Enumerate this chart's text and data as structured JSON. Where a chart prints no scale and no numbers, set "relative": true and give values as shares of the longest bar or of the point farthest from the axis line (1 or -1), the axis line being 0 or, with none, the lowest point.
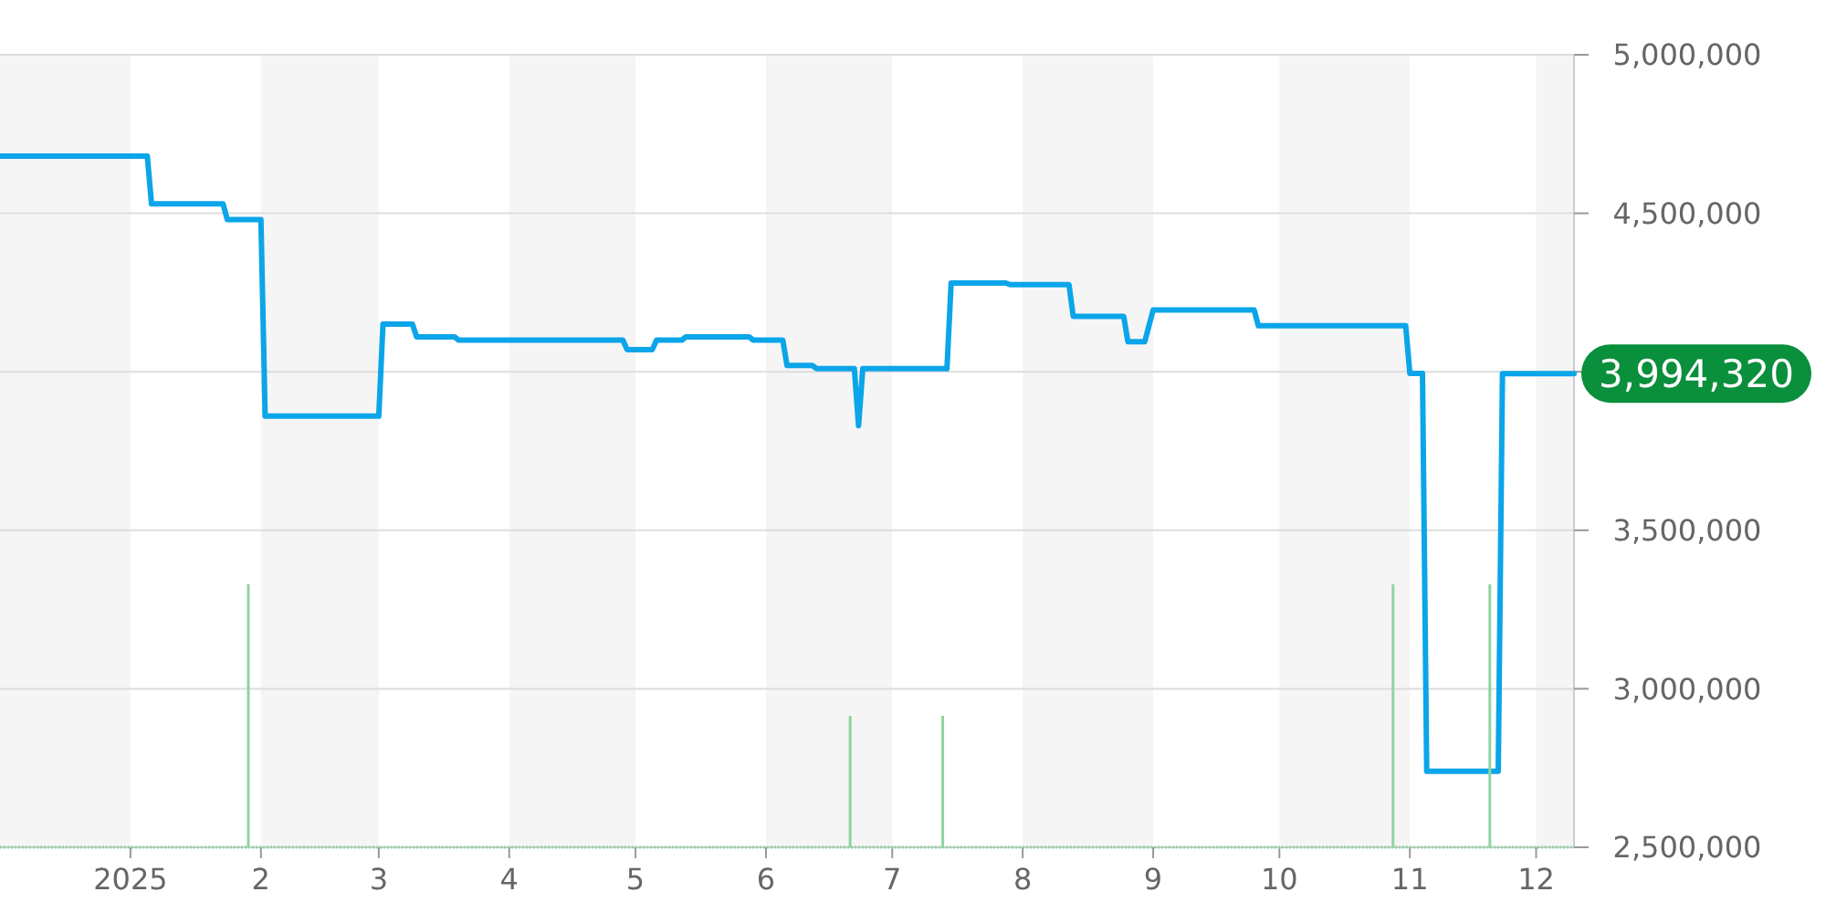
{
  "chart_data": [
    {
      "type": "line",
      "x": [
        "2024-12-01",
        "2025-01-05",
        "2025-01-06",
        "2025-01-23",
        "2025-01-24",
        "2025-02-01",
        "2025-02-02",
        "2025-03-01",
        "2025-03-02",
        "2025-03-09",
        "2025-03-10",
        "2025-03-19",
        "2025-03-20",
        "2025-04-28",
        "2025-04-29",
        "2025-05-05",
        "2025-05-06",
        "2025-05-12",
        "2025-05-13",
        "2025-05-28",
        "2025-05-29",
        "2025-06-05",
        "2025-06-06",
        "2025-06-12",
        "2025-06-13",
        "2025-06-22",
        "2025-06-23",
        "2025-06-24",
        "2025-07-14",
        "2025-07-15",
        "2025-07-28",
        "2025-07-29",
        "2025-08-12",
        "2025-08-13",
        "2025-08-25",
        "2025-08-26",
        "2025-08-30",
        "2025-09-01",
        "2025-09-25",
        "2025-09-26",
        "2025-10-31",
        "2025-11-01",
        "2025-11-04",
        "2025-11-05",
        "2025-11-22",
        "2025-11-23",
        "2025-12-10"
      ],
      "series": [
        {
          "color": "#0ba5e9",
          "values": [
            4680000,
            4680000,
            4530000,
            4530000,
            4480000,
            4480000,
            3860000,
            3860000,
            4150000,
            4150000,
            4110000,
            4110000,
            4100000,
            4100000,
            4070000,
            4070000,
            4100000,
            4100000,
            4110000,
            4110000,
            4100000,
            4100000,
            4020000,
            4020000,
            4010000,
            4010000,
            3830000,
            4010000,
            4010000,
            4280000,
            4280000,
            4275000,
            4275000,
            4175000,
            4175000,
            4095000,
            4095000,
            4195000,
            4195000,
            4145000,
            4145000,
            3995000,
            3995000,
            2740000,
            2740000,
            3994320,
            3994320
          ]
        }
      ],
      "xlim": [
        "2024-12-01",
        "2025-12-10"
      ],
      "xticks": [
        {
          "value": "2025-01-01",
          "label": "2025"
        },
        {
          "value": "2025-02-01",
          "label": "2"
        },
        {
          "value": "2025-03-01",
          "label": "3"
        },
        {
          "value": "2025-04-01",
          "label": "4"
        },
        {
          "value": "2025-05-01",
          "label": "5"
        },
        {
          "value": "2025-06-01",
          "label": "6"
        },
        {
          "value": "2025-07-01",
          "label": "7"
        },
        {
          "value": "2025-08-01",
          "label": "8"
        },
        {
          "value": "2025-09-01",
          "label": "9"
        },
        {
          "value": "2025-10-01",
          "label": "10"
        },
        {
          "value": "2025-11-01",
          "label": "11"
        },
        {
          "value": "2025-12-01",
          "label": "12"
        }
      ],
      "ylim": [
        2500000,
        5000000
      ],
      "yticks": [
        {
          "value": 2500000,
          "label": "2,500,000"
        },
        {
          "value": 3000000,
          "label": "3,000,000"
        },
        {
          "value": 3500000,
          "label": "3,500,000"
        },
        {
          "value": 4000000,
          "label": null
        },
        {
          "value": 4500000,
          "label": "4,500,000"
        },
        {
          "value": 5000000,
          "label": "5,000,000"
        }
      ],
      "grid": "y",
      "bands": [
        {
          "axis": "x",
          "from": "2024-12-01",
          "to": "2025-01-01",
          "color": "#f5f5f5"
        },
        {
          "axis": "x",
          "from": "2025-02-01",
          "to": "2025-03-01",
          "color": "#f5f5f5"
        },
        {
          "axis": "x",
          "from": "2025-04-01",
          "to": "2025-05-01",
          "color": "#f5f5f5"
        },
        {
          "axis": "x",
          "from": "2025-06-01",
          "to": "2025-07-01",
          "color": "#f5f5f5"
        },
        {
          "axis": "x",
          "from": "2025-08-01",
          "to": "2025-09-01",
          "color": "#f5f5f5"
        },
        {
          "axis": "x",
          "from": "2025-10-01",
          "to": "2025-11-01",
          "color": "#f5f5f5"
        },
        {
          "axis": "x",
          "from": "2025-12-01",
          "to": "2025-12-10",
          "color": "#f5f5f5"
        }
      ],
      "annotations": [
        {
          "text": "3,994,320",
          "x": "2025-12-10",
          "y": 3994320
        }
      ]
    },
    {
      "type": "bar",
      "x": [
        "2025-01-29",
        "2025-06-21",
        "2025-07-13",
        "2025-10-28",
        "2025-11-20"
      ],
      "values": [
        1,
        0.5,
        0.5,
        1,
        1
      ],
      "color": "#90d4a0",
      "relative": true,
      "xlim": [
        "2024-12-01",
        "2025-12-10"
      ]
    }
  ]
}
